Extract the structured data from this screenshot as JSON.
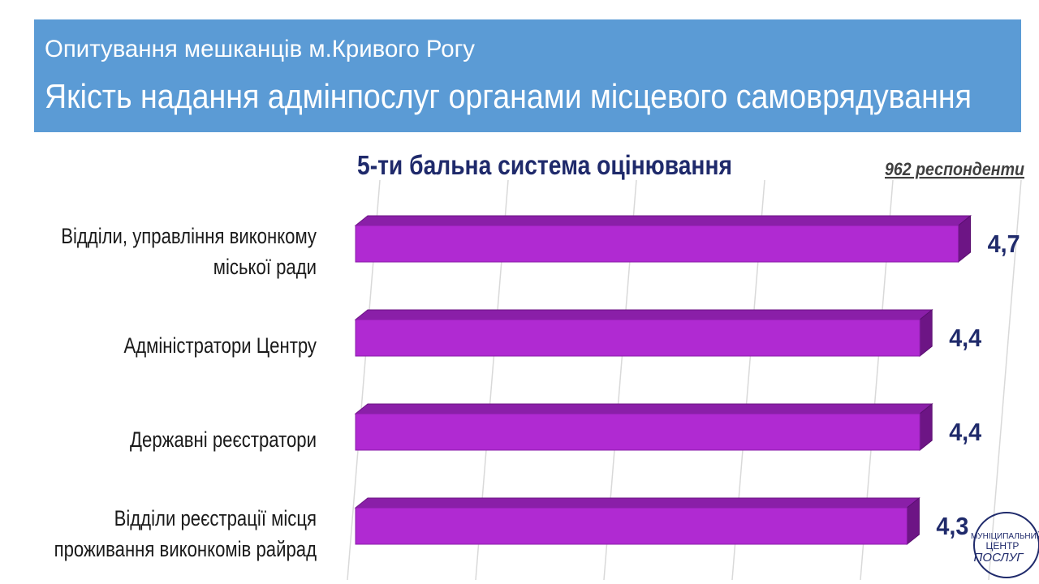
{
  "header": {
    "subtitle": "Опитування  мешканців м.Кривого Рогу",
    "title": "Якість надання адмінпослуг органами місцевого самоврядування"
  },
  "chart_data": {
    "type": "bar",
    "orientation": "horizontal",
    "title": "5-ти бальна система оцінювання",
    "annotation": "962 респонденти",
    "categories": [
      "Відділи, управління виконкому міської ради",
      "Адміністратори Центру",
      "Державні реєстратори",
      "Відділи реєстрації місця проживання виконкомів райрад"
    ],
    "values": [
      4.7,
      4.4,
      4.4,
      4.3
    ],
    "value_labels": [
      "4,7",
      "4,4",
      "4,4",
      "4,3"
    ],
    "color": "#b02ad2",
    "xlim": [
      0,
      5
    ],
    "xticks": [
      0,
      1,
      2,
      3,
      4,
      5
    ],
    "grid": true
  },
  "logo": {
    "line1": "МУНІЦИПАЛЬНИЙ",
    "line2": "ЦЕНТР",
    "line3": "ПОСЛУГ"
  }
}
